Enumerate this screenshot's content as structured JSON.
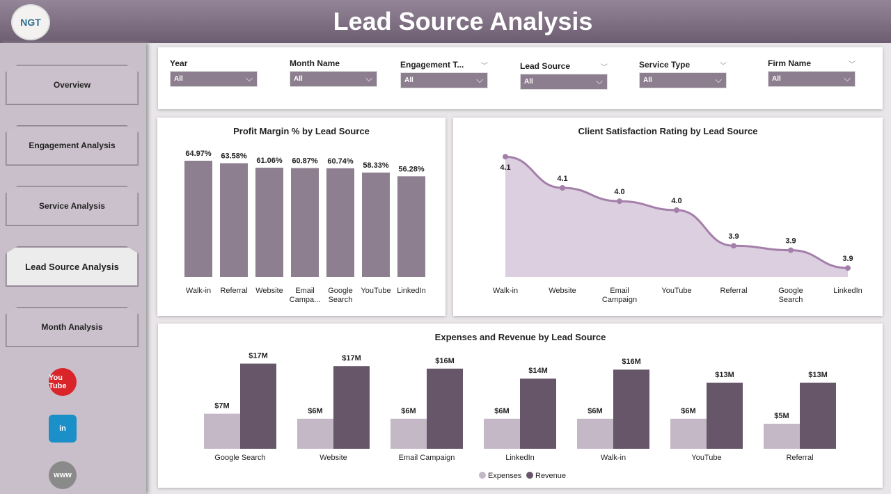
{
  "header": {
    "title": "Lead Source Analysis",
    "logo_text": "NGT"
  },
  "sidebar": {
    "items": [
      {
        "label": "Overview"
      },
      {
        "label": "Engagement Analysis"
      },
      {
        "label": "Service Analysis"
      },
      {
        "label": "Lead Source Analysis",
        "active": true
      },
      {
        "label": "Month Analysis"
      }
    ],
    "social": [
      {
        "icon": "youtube-icon",
        "text": "You Tube",
        "color": "#d9252a"
      },
      {
        "icon": "linkedin-icon",
        "text": "in",
        "color": "#1b8fc7"
      },
      {
        "icon": "website-icon",
        "text": "www",
        "color": "#8a8a8a"
      }
    ]
  },
  "filters": [
    {
      "label": "Year",
      "value": "All"
    },
    {
      "label": "Month Name",
      "value": "All"
    },
    {
      "label": "Engagement T...",
      "value": "All"
    },
    {
      "label": "Lead Source",
      "value": "All"
    },
    {
      "label": "Service Type",
      "value": "All"
    },
    {
      "label": "Firm Name",
      "value": "All"
    }
  ],
  "colors": {
    "bar": "#8d7f8f",
    "expenses": "#c4b8c6",
    "revenue": "#67556a",
    "area": "#dccfe0",
    "line": "#a47faa"
  },
  "chart_data": [
    {
      "type": "bar",
      "title": "Profit Margin % by Lead Source",
      "categories": [
        "Walk-in",
        "Referral",
        "Website",
        "Email Campa...",
        "Google Search",
        "YouTube",
        "LinkedIn"
      ],
      "values": [
        64.97,
        63.58,
        61.06,
        60.87,
        60.74,
        58.33,
        56.28
      ],
      "labels": [
        "64.97%",
        "63.58%",
        "61.06%",
        "60.87%",
        "60.74%",
        "58.33%",
        "56.28%"
      ],
      "ylim": [
        0,
        70
      ]
    },
    {
      "type": "area",
      "title": "Client Satisfaction Rating by Lead Source",
      "categories": [
        "Walk-in",
        "Website",
        "Email Campaign",
        "YouTube",
        "Referral",
        "Google Search",
        "LinkedIn"
      ],
      "values": [
        4.14,
        4.07,
        4.04,
        4.02,
        3.94,
        3.93,
        3.89
      ],
      "labels": [
        "4.1",
        "4.1",
        "4.0",
        "4.0",
        "3.9",
        "3.9",
        "3.9"
      ]
    },
    {
      "type": "bar",
      "title": "Expenses and Revenue by Lead Source",
      "categories": [
        "Google Search",
        "Website",
        "Email Campaign",
        "LinkedIn",
        "Walk-in",
        "YouTube",
        "Referral"
      ],
      "series": [
        {
          "name": "Expenses",
          "values": [
            7,
            6,
            6,
            6,
            6,
            6,
            5
          ],
          "labels": [
            "$7M",
            "$6M",
            "$6M",
            "$6M",
            "$6M",
            "$6M",
            "$5M"
          ]
        },
        {
          "name": "Revenue",
          "values": [
            17,
            16.5,
            16,
            14,
            15.8,
            13.2,
            13.2
          ],
          "labels": [
            "$17M",
            "$17M",
            "$16M",
            "$14M",
            "$16M",
            "$13M",
            "$13M"
          ]
        }
      ],
      "legend": "bottom"
    }
  ]
}
